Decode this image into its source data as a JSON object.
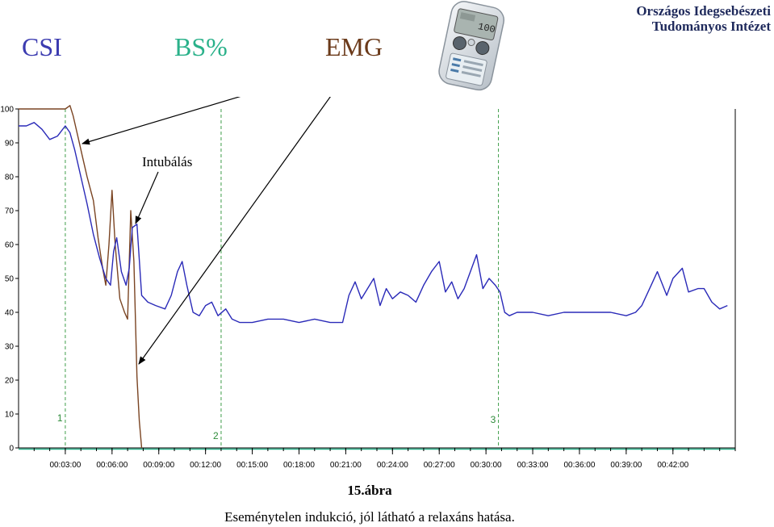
{
  "header": {
    "legend": [
      {
        "id": "csi",
        "label": "CSI",
        "color": "#3B3BB0"
      },
      {
        "id": "bs",
        "label": "BS%",
        "color": "#2ab18a"
      },
      {
        "id": "emg",
        "label": "EMG",
        "color": "#6b3a1a"
      }
    ],
    "institute_line1": "Országos Idegsebészeti",
    "institute_line2": "Tudományos Intézet",
    "device_display": "100",
    "device_icon": "cerebral-state-monitor-device-icon"
  },
  "chart_data": {
    "type": "line",
    "ylim": [
      0,
      100
    ],
    "xlim": [
      0,
      46
    ],
    "y_ticks": [
      0,
      10,
      20,
      30,
      40,
      50,
      60,
      70,
      80,
      90,
      100
    ],
    "x_tick_labels": [
      "00:03:00",
      "00:06:00",
      "00:09:00",
      "00:12:00",
      "00:15:00",
      "00:18:00",
      "00:21:00",
      "00:24:00",
      "00:27:00",
      "00:30:00",
      "00:33:00",
      "00:36:00",
      "00:39:00",
      "00:42:00"
    ],
    "x_ticks_minutes": [
      3,
      6,
      9,
      12,
      15,
      18,
      21,
      24,
      27,
      30,
      33,
      36,
      39,
      42
    ],
    "grid": false,
    "event_markers": [
      {
        "label": "1",
        "x": 3.0
      },
      {
        "label": "2",
        "x": 13.0
      },
      {
        "label": "3",
        "x": 30.8
      }
    ],
    "series": [
      {
        "name": "CSI",
        "color": "#2a2ab8",
        "x": [
          0,
          0.5,
          1,
          1.5,
          2,
          2.5,
          3,
          3.3,
          3.6,
          4,
          4.4,
          4.8,
          5.2,
          5.6,
          5.9,
          6.1,
          6.3,
          6.6,
          6.9,
          7.1,
          7.3,
          7.6,
          7.9,
          8.3,
          8.8,
          9.4,
          9.8,
          10.2,
          10.5,
          10.8,
          11.2,
          11.6,
          12,
          12.4,
          12.8,
          13.3,
          13.7,
          14.2,
          15,
          16,
          17,
          18,
          19,
          20,
          20.8,
          21.2,
          21.6,
          22,
          22.4,
          22.8,
          23.2,
          23.6,
          24,
          24.5,
          25,
          25.5,
          26,
          26.5,
          27,
          27.4,
          27.8,
          28.2,
          28.6,
          29,
          29.4,
          29.8,
          30.2,
          30.6,
          30.9,
          31.2,
          31.5,
          32,
          33,
          34,
          35,
          36,
          37,
          38,
          39,
          39.6,
          40,
          40.6,
          41,
          41.6,
          42,
          42.6,
          43,
          43.6,
          44,
          44.5,
          45,
          45.5
        ],
        "y": [
          95,
          95,
          96,
          94,
          91,
          92,
          95,
          93,
          88,
          80,
          72,
          63,
          56,
          50,
          48,
          58,
          62,
          52,
          48,
          53,
          65,
          66,
          45,
          43,
          42,
          41,
          45,
          52,
          55,
          48,
          40,
          39,
          42,
          43,
          39,
          41,
          38,
          37,
          37,
          38,
          38,
          37,
          38,
          37,
          37,
          45,
          49,
          44,
          47,
          50,
          42,
          47,
          44,
          46,
          45,
          43,
          48,
          52,
          55,
          46,
          49,
          44,
          47,
          52,
          57,
          47,
          50,
          48,
          46,
          40,
          39,
          40,
          40,
          39,
          40,
          40,
          40,
          40,
          39,
          40,
          42,
          48,
          52,
          45,
          50,
          53,
          46,
          47,
          47,
          43,
          41,
          42
        ]
      },
      {
        "name": "EMG",
        "color": "#7a4422",
        "x": [
          0,
          1,
          2,
          3,
          3.3,
          3.5,
          3.8,
          4.1,
          4.4,
          4.8,
          5.1,
          5.4,
          5.6,
          5.8,
          6.0,
          6.2,
          6.5,
          6.8,
          7.0,
          7.2,
          7.4,
          7.6,
          7.75,
          7.9
        ],
        "y": [
          100,
          100,
          100,
          100,
          101,
          98,
          92,
          86,
          80,
          73,
          62,
          53,
          48,
          60,
          76,
          60,
          44,
          40,
          38,
          70,
          55,
          21,
          8,
          0
        ]
      }
    ],
    "annotations": [
      "Intubálás"
    ]
  },
  "captions": {
    "figure_number": "15.ábra",
    "description": "Eseménytelen indukció, jól látható  a relaxáns hatása."
  }
}
